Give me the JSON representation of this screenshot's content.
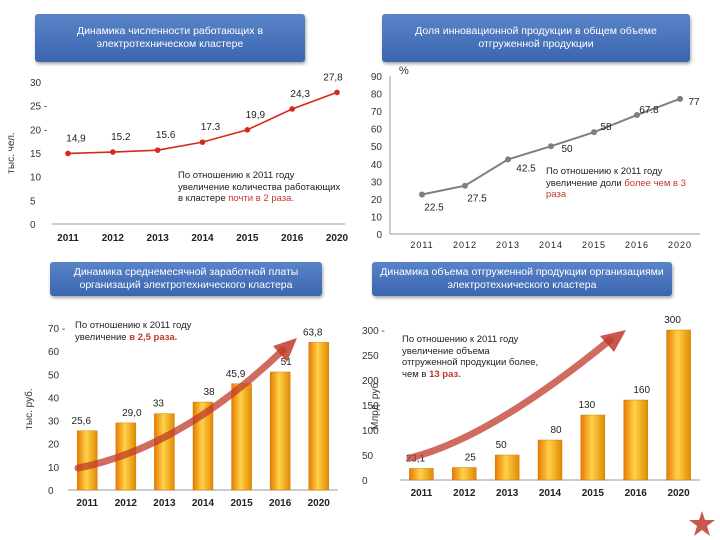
{
  "panel1": {
    "title": "Динамика численности работающих в электротехническом кластере",
    "ylabel": "тыс. чел.",
    "note_prefix": "По отношению к 2011 году увеличение количества работающих в кластере",
    "note_highlight": "почти в 2 раза.",
    "highlight_color": "#c0392b"
  },
  "panel2": {
    "title": "Доля инновационной продукции в общем объеме отгруженной продукции",
    "unit": "%",
    "note_prefix": "По отношению к 2011 году увеличение доли",
    "note_highlight": "более чем в 3 раза"
  },
  "panel3": {
    "title": "Динамика среднемесячной заработной платы организаций электротехнического кластера",
    "ylabel": "тыс. руб.",
    "note_prefix": "По отношению к 2011 году увеличение",
    "note_highlight": "в 2,5 раза."
  },
  "panel4": {
    "title": "Динамика объема отгруженной продукции организациями электротехнического кластера",
    "ylabel": "Млрд. руб.",
    "note_prefix": "По отношению к 2011 году увеличение объема отгруженной продукции более, чем в",
    "note_highlight": "13 раз."
  },
  "colors": {
    "line_red": "#d7281c",
    "line_gray": "#7f7f7f",
    "banner": "#4a76bd",
    "bar_gold": "#f2a900",
    "arrow": "#c0392b"
  },
  "chart_data": [
    {
      "type": "line",
      "title": "Динамика численности работающих в электротехническом кластере",
      "ylabel": "тыс. чел.",
      "x": [
        "2011",
        "2012",
        "2013",
        "2014",
        "2015",
        "2016",
        "2020"
      ],
      "values": [
        14.9,
        15.2,
        15.6,
        17.3,
        19.9,
        24.3,
        27.8
      ],
      "labels": [
        "14,9",
        "15.2",
        "15.6",
        "17.3",
        "19,9",
        "24,3",
        "27,8"
      ],
      "yticks": [
        0,
        5,
        10,
        15,
        20,
        25,
        30
      ],
      "ytick_labels": [
        "0",
        "5",
        "10",
        "15",
        "20 -",
        "25 -",
        "30"
      ],
      "ylim": [
        0,
        30
      ]
    },
    {
      "type": "line",
      "title": "Доля инновационной продукции в общем объеме отгруженной продукции",
      "ylabel": "%",
      "x": [
        "2011",
        "2012",
        "2013",
        "2014",
        "2015",
        "2016",
        "2020"
      ],
      "values": [
        22.5,
        27.5,
        42.5,
        50,
        58,
        67.8,
        77
      ],
      "labels": [
        "22.5",
        "27.5",
        "42.5",
        "50",
        "58",
        "67.8",
        "77"
      ],
      "yticks": [
        0,
        10,
        20,
        30,
        40,
        50,
        60,
        70,
        80,
        90
      ],
      "ytick_labels": [
        "0",
        "10",
        "20",
        "30",
        "40",
        "50",
        "60",
        "70",
        "80",
        "90"
      ],
      "ylim": [
        0,
        90
      ]
    },
    {
      "type": "bar",
      "title": "Динамика среднемесячной заработной платы организаций электротехнического кластера",
      "ylabel": "тыс. руб.",
      "categories": [
        "2011",
        "2012",
        "2013",
        "2014",
        "2015",
        "2016",
        "2020"
      ],
      "values": [
        25.6,
        29.0,
        33,
        38,
        45.9,
        51,
        63.8
      ],
      "labels": [
        "25,6",
        "29,0",
        "33",
        "38",
        "45,9",
        "51",
        "63,8"
      ],
      "yticks": [
        0,
        10,
        20,
        30,
        40,
        50,
        60,
        70
      ],
      "ytick_labels": [
        "0",
        "10",
        "20",
        "30",
        "40",
        "50",
        "60",
        "70 -"
      ],
      "ylim": [
        0,
        70
      ]
    },
    {
      "type": "bar",
      "title": "Динамика объема отгруженной продукции организациями электротехнического кластера",
      "ylabel": "Млрд. руб.",
      "categories": [
        "2011",
        "2012",
        "2013",
        "2014",
        "2015",
        "2016",
        "2020"
      ],
      "values": [
        23.1,
        25,
        50,
        80,
        130,
        160,
        300
      ],
      "labels": [
        "23,1",
        "25",
        "50",
        "80",
        "130",
        "160",
        "300"
      ],
      "yticks": [
        0,
        50,
        100,
        150,
        200,
        250,
        300
      ],
      "ytick_labels": [
        "0",
        "50",
        "100",
        "150",
        "200",
        "250",
        "300 -"
      ],
      "ylim": [
        0,
        300
      ]
    }
  ]
}
